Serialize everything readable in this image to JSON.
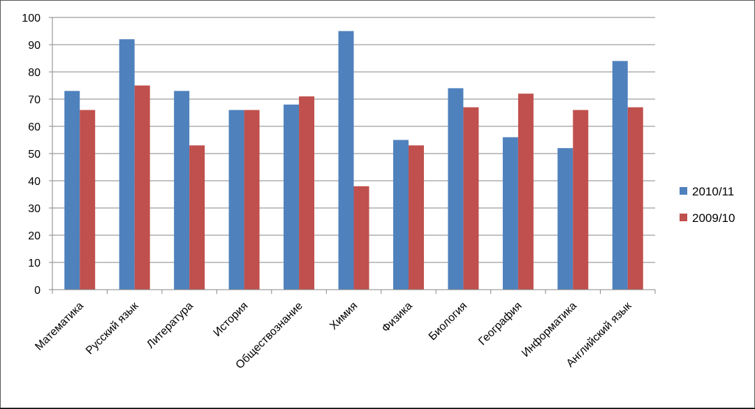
{
  "chart_data": {
    "type": "bar",
    "categories": [
      "Математика",
      "Русский язык",
      "Литература",
      "История",
      "Обществознание",
      "Химия",
      "Физика",
      "Биология",
      "География",
      "Информатика",
      "Английский язык"
    ],
    "series": [
      {
        "name": "2010/11",
        "color": "#4F81BD",
        "values": [
          73,
          92,
          73,
          66,
          68,
          95,
          55,
          74,
          56,
          52,
          84
        ]
      },
      {
        "name": "2009/10",
        "color": "#C0504D",
        "values": [
          66,
          75,
          53,
          66,
          71,
          38,
          53,
          67,
          72,
          66,
          67
        ]
      }
    ],
    "ylim": [
      0,
      100
    ],
    "yticks": [
      0,
      10,
      20,
      30,
      40,
      50,
      60,
      70,
      80,
      90,
      100
    ],
    "grid": true,
    "legend_position": "right",
    "title": "",
    "xlabel": "",
    "ylabel": ""
  }
}
